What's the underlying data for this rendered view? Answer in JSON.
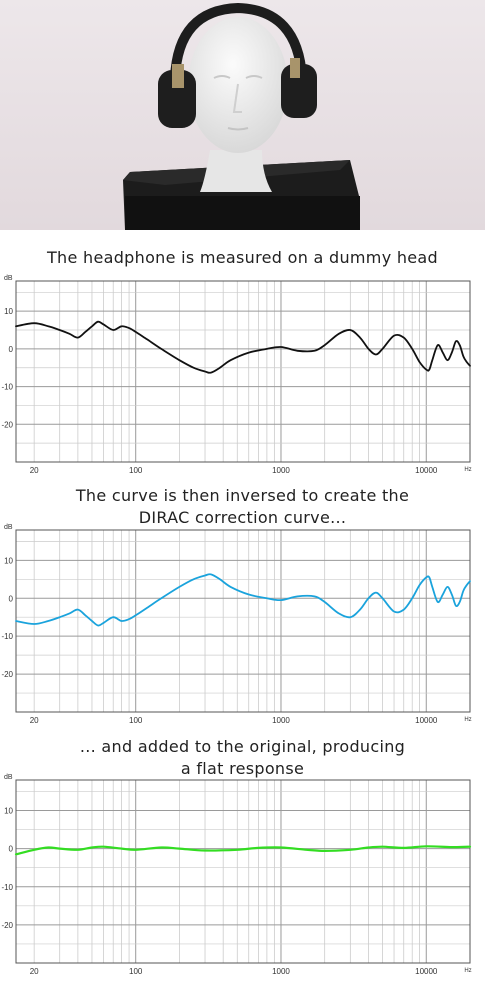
{
  "photo": {
    "description_icon": "dummy-head-with-headphones-photo"
  },
  "captions": {
    "c1": "The headphone is measured on a dummy head",
    "c2a": "The curve is then inversed to create the",
    "c2b": "DIRAC correction curve...",
    "c3a": "... and added to the original, producing",
    "c3b": "a flat response"
  },
  "chart_data": [
    {
      "type": "line",
      "ylabel": "dB",
      "xlabel": "Hz",
      "xscale": "log",
      "xlim": [
        15,
        20000
      ],
      "ylim": [
        -30,
        18
      ],
      "xticks": [
        20,
        100,
        1000,
        10000
      ],
      "yticks": [
        10,
        0,
        -10,
        -20
      ],
      "grid": true,
      "color": "#111111",
      "x": [
        15,
        20,
        25,
        30,
        35,
        40,
        45,
        50,
        55,
        60,
        70,
        80,
        90,
        100,
        120,
        150,
        200,
        250,
        300,
        330,
        380,
        450,
        600,
        800,
        1000,
        1300,
        1700,
        2000,
        2500,
        3000,
        3500,
        4000,
        4500,
        5000,
        6000,
        7000,
        8000,
        9000,
        10000,
        10500,
        11000,
        12000,
        13000,
        14000,
        15000,
        16000,
        17000,
        18000,
        19000,
        20000
      ],
      "values": [
        6,
        6.8,
        6,
        5,
        4,
        3,
        4.5,
        6,
        7.2,
        6.5,
        5,
        6,
        5.5,
        4.5,
        2.5,
        0,
        -3,
        -5,
        -6,
        -6.3,
        -5,
        -3,
        -1,
        0,
        0.5,
        -0.5,
        -0.5,
        1,
        4,
        5,
        3,
        0,
        -1.5,
        0,
        3.5,
        3,
        0,
        -3.5,
        -5.5,
        -5.5,
        -3,
        1,
        -1,
        -3,
        -1,
        2,
        1,
        -2,
        -3.5,
        -4.5
      ]
    },
    {
      "type": "line",
      "ylabel": "dB",
      "xlabel": "Hz",
      "xscale": "log",
      "xlim": [
        15,
        20000
      ],
      "ylim": [
        -30,
        18
      ],
      "xticks": [
        20,
        100,
        1000,
        10000
      ],
      "yticks": [
        10,
        0,
        -10,
        -20
      ],
      "grid": true,
      "color": "#1aa3dc",
      "x": [
        15,
        20,
        25,
        30,
        35,
        40,
        45,
        50,
        55,
        60,
        70,
        80,
        90,
        100,
        120,
        150,
        200,
        250,
        300,
        330,
        380,
        450,
        600,
        800,
        1000,
        1300,
        1700,
        2000,
        2500,
        3000,
        3500,
        4000,
        4500,
        5000,
        6000,
        7000,
        8000,
        9000,
        10000,
        10500,
        11000,
        12000,
        13000,
        14000,
        15000,
        16000,
        17000,
        18000,
        19000,
        20000
      ],
      "values": [
        -6,
        -6.8,
        -6,
        -5,
        -4,
        -3,
        -4.5,
        -6,
        -7.2,
        -6.5,
        -5,
        -6,
        -5.5,
        -4.5,
        -2.5,
        0,
        3,
        5,
        6,
        6.3,
        5,
        3,
        1,
        0,
        -0.5,
        0.5,
        0.5,
        -1,
        -4,
        -5,
        -3,
        0,
        1.5,
        0,
        -3.5,
        -3,
        0,
        3.5,
        5.5,
        5.5,
        3,
        -1,
        1,
        3,
        1,
        -2,
        -1,
        2,
        3.5,
        4.5
      ]
    },
    {
      "type": "line",
      "ylabel": "dB",
      "xlabel": "Hz",
      "xscale": "log",
      "xlim": [
        15,
        20000
      ],
      "ylim": [
        -30,
        18
      ],
      "xticks": [
        20,
        100,
        1000,
        10000
      ],
      "yticks": [
        10,
        0,
        -10,
        -20
      ],
      "grid": true,
      "color": "#33dd22",
      "x": [
        15,
        20,
        25,
        30,
        40,
        50,
        60,
        80,
        100,
        150,
        200,
        300,
        500,
        700,
        1000,
        1500,
        2000,
        3000,
        4000,
        5000,
        7000,
        10000,
        15000,
        20000
      ],
      "values": [
        -1.5,
        -0.3,
        0.3,
        0,
        -0.3,
        0.3,
        0.5,
        0,
        -0.3,
        0.3,
        0,
        -0.5,
        -0.3,
        0.2,
        0.3,
        -0.3,
        -0.6,
        -0.3,
        0.3,
        0.5,
        0.2,
        0.6,
        0.4,
        0.5
      ]
    }
  ]
}
